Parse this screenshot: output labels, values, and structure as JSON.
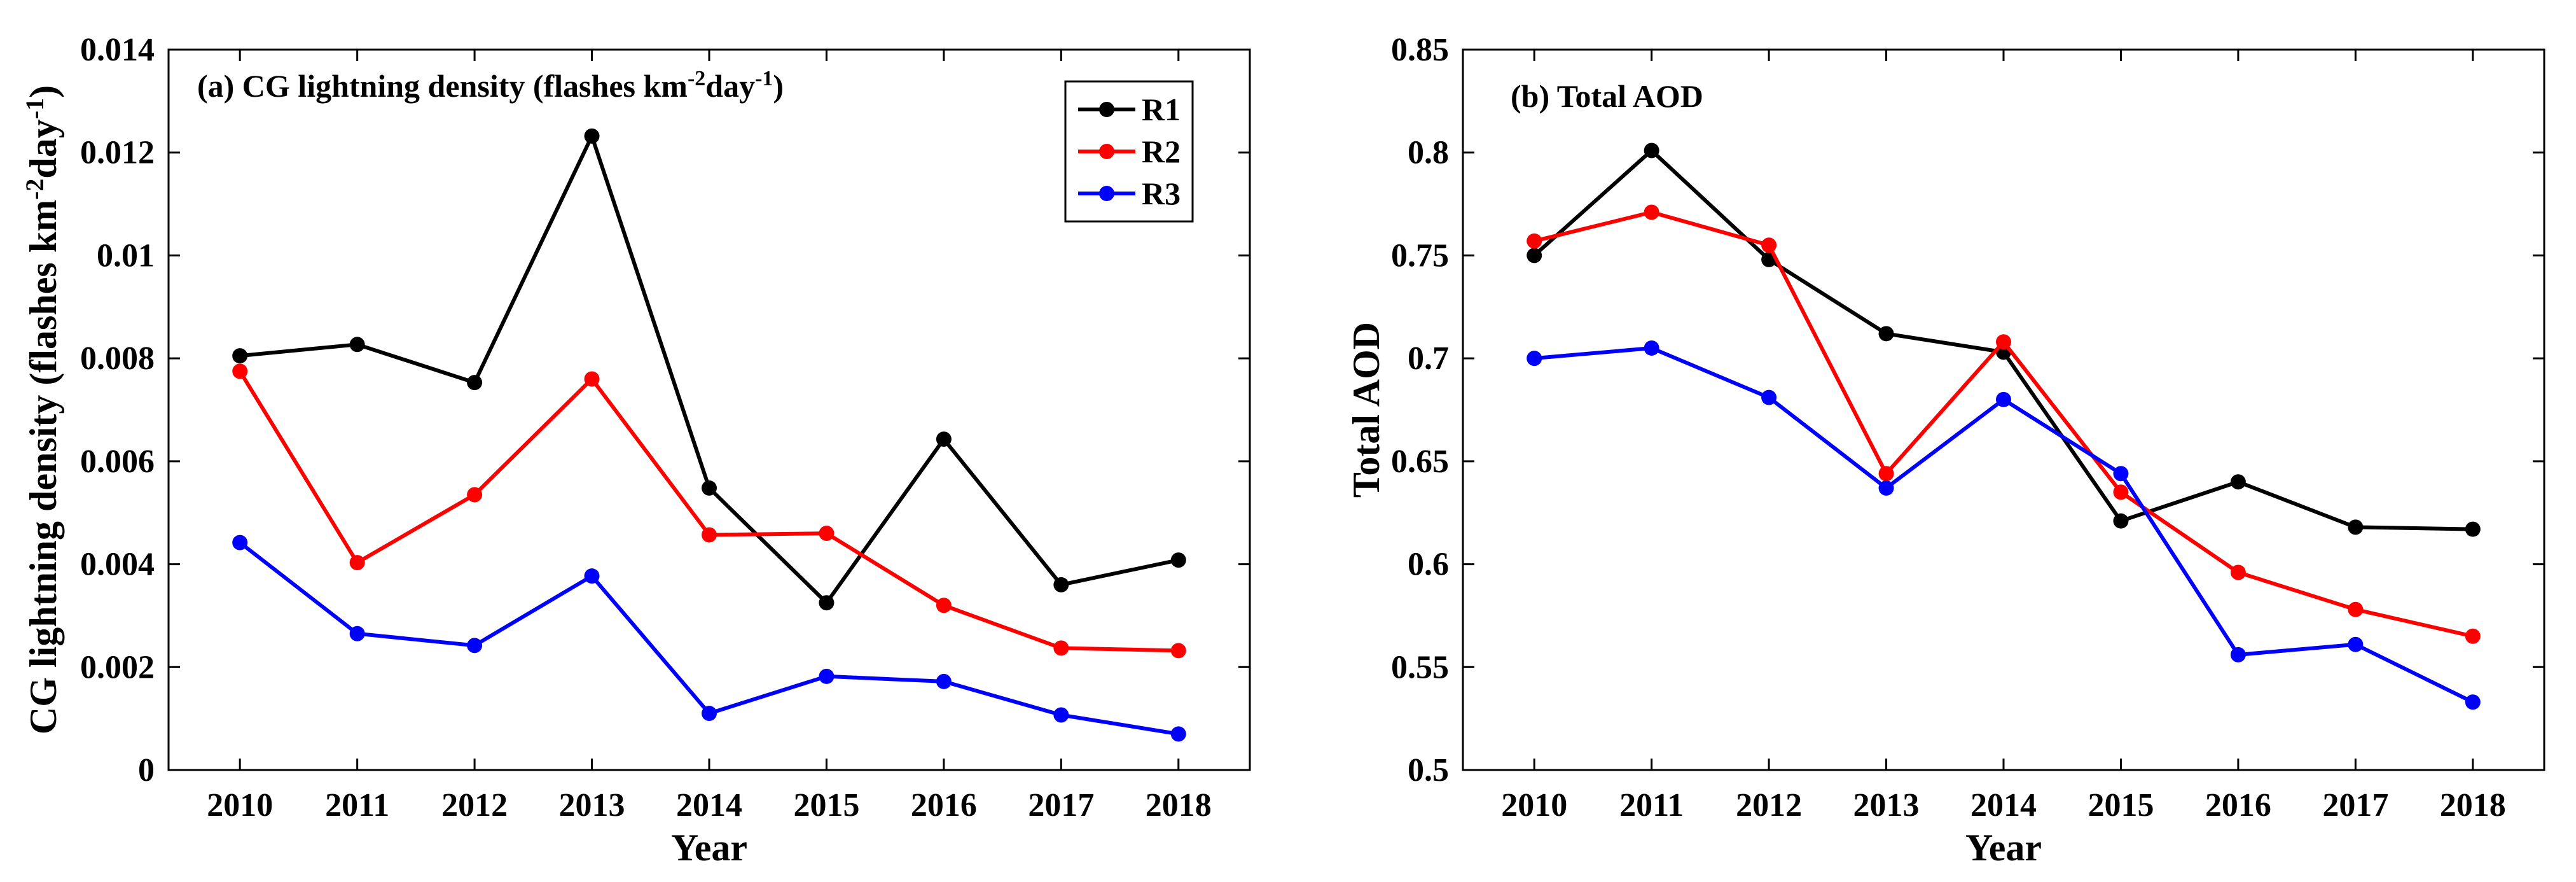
{
  "chart_data": [
    {
      "type": "line",
      "title": "(a) CG lightning density (flashes km",
      "title_sup1": "-2",
      "title_mid": "day",
      "title_sup2": "-1",
      "title_end": ")",
      "xlabel": "Year",
      "ylabel": "CG lightning density (flashes km",
      "ylabel_sup1": "-2",
      "ylabel_mid": "day",
      "ylabel_sup2": "-1",
      "ylabel_end": ")",
      "x": [
        "2010",
        "2011",
        "2012",
        "2013",
        "2014",
        "2015",
        "2016",
        "2017",
        "2018"
      ],
      "ylim": [
        0,
        0.014
      ],
      "yticks": [
        "0",
        "0.002",
        "0.004",
        "0.006",
        "0.008",
        "0.01",
        "0.012",
        "0.014"
      ],
      "legend": "top-right",
      "series": [
        {
          "name": "R1",
          "color": "#000000",
          "values": [
            0.00805,
            0.00827,
            0.00753,
            0.01232,
            0.00548,
            0.00325,
            0.00643,
            0.0036,
            0.00408
          ]
        },
        {
          "name": "R2",
          "color": "#ff0000",
          "values": [
            0.00775,
            0.00403,
            0.00535,
            0.0076,
            0.00457,
            0.0046,
            0.0032,
            0.00237,
            0.00232
          ]
        },
        {
          "name": "R3",
          "color": "#0000ff",
          "values": [
            0.00442,
            0.00265,
            0.00242,
            0.00377,
            0.0011,
            0.00182,
            0.00172,
            0.00107,
            0.0007
          ]
        }
      ]
    },
    {
      "type": "line",
      "title": "(b) Total AOD",
      "xlabel": "Year",
      "ylabel": "Total AOD",
      "x": [
        "2010",
        "2011",
        "2012",
        "2013",
        "2014",
        "2015",
        "2016",
        "2017",
        "2018"
      ],
      "ylim": [
        0.5,
        0.85
      ],
      "yticks": [
        "0.5",
        "0.55",
        "0.6",
        "0.65",
        "0.7",
        "0.75",
        "0.8",
        "0.85"
      ],
      "series": [
        {
          "name": "R1",
          "color": "#000000",
          "values": [
            0.75,
            0.801,
            0.748,
            0.712,
            0.703,
            0.621,
            0.64,
            0.618,
            0.617
          ]
        },
        {
          "name": "R2",
          "color": "#ff0000",
          "values": [
            0.757,
            0.771,
            0.755,
            0.644,
            0.708,
            0.635,
            0.596,
            0.578,
            0.565
          ]
        },
        {
          "name": "R3",
          "color": "#0000ff",
          "values": [
            0.7,
            0.705,
            0.681,
            0.637,
            0.68,
            0.644,
            0.556,
            0.561,
            0.533
          ]
        }
      ]
    }
  ]
}
